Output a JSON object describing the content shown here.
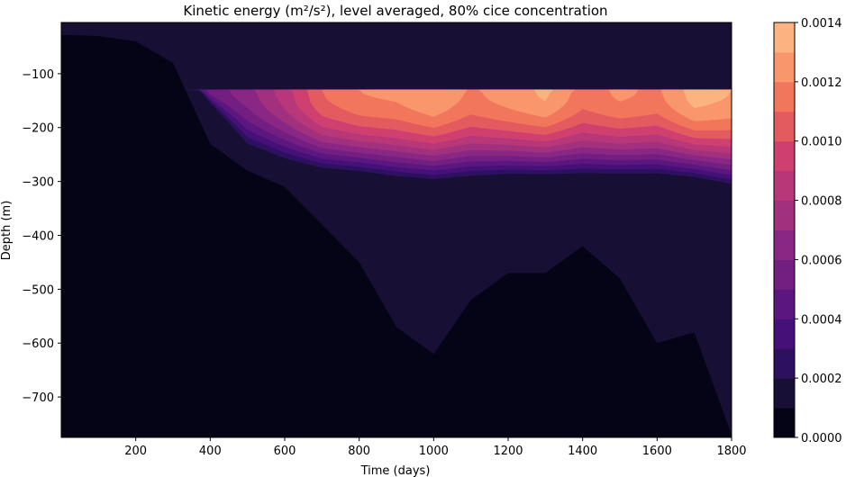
{
  "chart_data": {
    "type": "heatmap",
    "subtype": "filled-contour",
    "title": "Kinetic energy (m²/s²), level averaged, 80% cice concentration",
    "xlabel": "Time (days)",
    "ylabel": "Depth (m)",
    "xlim": [
      0,
      1800
    ],
    "ylim": [
      -775,
      -5
    ],
    "x_ticks": [
      200,
      400,
      600,
      800,
      1000,
      1200,
      1400,
      1600,
      1800
    ],
    "y_ticks": [
      -100,
      -200,
      -300,
      -400,
      -500,
      -600,
      -700
    ],
    "colorbar": {
      "label": "",
      "levels": [
        0.0,
        0.0001,
        0.0002,
        0.0003,
        0.0004,
        0.0005,
        0.0006,
        0.0007,
        0.0008,
        0.0009,
        0.001,
        0.0011,
        0.0012,
        0.0013,
        0.0014
      ],
      "tick_labels": [
        "0.0000",
        "0.0002",
        "0.0004",
        "0.0006",
        "0.0008",
        "0.0010",
        "0.0012",
        "0.0014"
      ],
      "colormap": "magma",
      "colors": [
        "#050416",
        "#171034",
        "#2d1160",
        "#451077",
        "#5c167f",
        "#721f81",
        "#8a2785",
        "#a1307e",
        "#b73779",
        "#cf4070",
        "#e35a5f",
        "#f2765c",
        "#f9966b",
        "#fdb37f",
        "#fed194"
      ]
    },
    "profile": {
      "days": [
        0,
        100,
        200,
        300,
        400,
        500,
        600,
        700,
        800,
        900,
        1000,
        1100,
        1200,
        1300,
        1400,
        1500,
        1600,
        1700,
        1800
      ],
      "core_depth_m": -130,
      "peak_energy": [
        0.0,
        0.0,
        0.0,
        5e-05,
        0.00055,
        0.00065,
        0.00085,
        0.0011,
        0.0012,
        0.00122,
        0.0013,
        0.00118,
        0.00125,
        0.00132,
        0.00115,
        0.00122,
        0.00118,
        0.00135,
        0.0013
      ],
      "active_layer_bottom_m": [
        -30,
        -30,
        -35,
        -60,
        -160,
        -250,
        -275,
        -290,
        -295,
        -305,
        -310,
        -305,
        -300,
        -300,
        -300,
        -300,
        -300,
        -305,
        -320
      ],
      "low_energy_bottom_m": [
        -28,
        -30,
        -40,
        -80,
        -230,
        -280,
        -310,
        -380,
        -450,
        -570,
        -620,
        -520,
        -470,
        -470,
        -420,
        -480,
        -600,
        -580,
        -770
      ]
    }
  }
}
